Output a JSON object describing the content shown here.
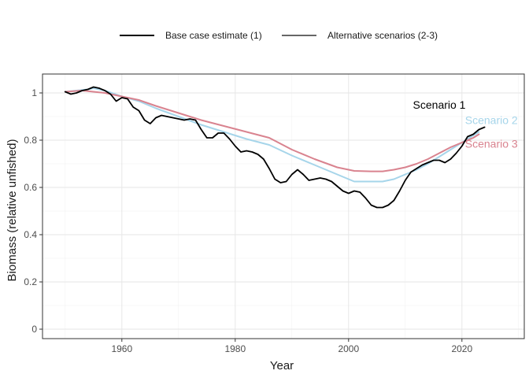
{
  "chart_data": {
    "type": "line",
    "title": "",
    "xlabel": "Year",
    "ylabel": "Biomass (relative unfished)",
    "xlim": [
      1946,
      2031
    ],
    "ylim": [
      -0.04,
      1.08
    ],
    "x_ticks": [
      1960,
      1980,
      2000,
      2020
    ],
    "x_tick_labels": [
      "1960",
      "1980",
      "2000",
      "2020"
    ],
    "y_ticks": [
      0,
      0.2,
      0.4,
      0.6,
      0.8,
      1
    ],
    "y_tick_labels": [
      "0",
      "0.2",
      "0.4",
      "0.6",
      "0.8",
      "1"
    ],
    "grid": true,
    "legend_position": "top",
    "legend": [
      {
        "label": "Base case estimate (1)",
        "color": "#000000"
      },
      {
        "label": "Alternative scenarios (2-3)",
        "color": "#666666"
      }
    ],
    "series": [
      {
        "name": "Scenario 2",
        "color": "#a6d5ea",
        "label_point": [
          2025.2,
          0.885
        ],
        "points": [
          [
            1950,
            1.005
          ],
          [
            1952,
            1.01
          ],
          [
            1954,
            1.015
          ],
          [
            1955,
            1.02
          ],
          [
            1957,
            1.01
          ],
          [
            1960,
            0.985
          ],
          [
            1963,
            0.965
          ],
          [
            1966,
            0.935
          ],
          [
            1970,
            0.9
          ],
          [
            1974,
            0.865
          ],
          [
            1978,
            0.835
          ],
          [
            1982,
            0.805
          ],
          [
            1986,
            0.78
          ],
          [
            1990,
            0.735
          ],
          [
            1994,
            0.695
          ],
          [
            1998,
            0.655
          ],
          [
            2001,
            0.625
          ],
          [
            2004,
            0.625
          ],
          [
            2006,
            0.625
          ],
          [
            2008,
            0.635
          ],
          [
            2010,
            0.655
          ],
          [
            2012,
            0.675
          ],
          [
            2014,
            0.7
          ],
          [
            2016,
            0.73
          ],
          [
            2018,
            0.76
          ],
          [
            2020,
            0.79
          ],
          [
            2022,
            0.82
          ],
          [
            2023,
            0.835
          ]
        ]
      },
      {
        "name": "Scenario 3",
        "color": "#d9838f",
        "label_point": [
          2025.2,
          0.785
        ],
        "points": [
          [
            1950,
            1.005
          ],
          [
            1953,
            1.01
          ],
          [
            1955,
            1.005
          ],
          [
            1957,
            1.0
          ],
          [
            1960,
            0.985
          ],
          [
            1963,
            0.97
          ],
          [
            1966,
            0.945
          ],
          [
            1970,
            0.915
          ],
          [
            1974,
            0.885
          ],
          [
            1978,
            0.86
          ],
          [
            1982,
            0.835
          ],
          [
            1986,
            0.81
          ],
          [
            1990,
            0.76
          ],
          [
            1994,
            0.72
          ],
          [
            1998,
            0.685
          ],
          [
            2001,
            0.67
          ],
          [
            2004,
            0.668
          ],
          [
            2006,
            0.668
          ],
          [
            2008,
            0.675
          ],
          [
            2010,
            0.685
          ],
          [
            2012,
            0.7
          ],
          [
            2014,
            0.72
          ],
          [
            2016,
            0.745
          ],
          [
            2018,
            0.77
          ],
          [
            2020,
            0.79
          ],
          [
            2022,
            0.81
          ],
          [
            2023,
            0.825
          ]
        ]
      },
      {
        "name": "Scenario 1",
        "color": "#000000",
        "label_point": [
          2016,
          0.95
        ],
        "points": [
          [
            1950,
            1.005
          ],
          [
            1951,
            0.995
          ],
          [
            1952,
            1.0
          ],
          [
            1953,
            1.01
          ],
          [
            1954,
            1.015
          ],
          [
            1955,
            1.025
          ],
          [
            1956,
            1.02
          ],
          [
            1957,
            1.01
          ],
          [
            1958,
            0.995
          ],
          [
            1959,
            0.965
          ],
          [
            1960,
            0.98
          ],
          [
            1961,
            0.975
          ],
          [
            1962,
            0.94
          ],
          [
            1963,
            0.925
          ],
          [
            1964,
            0.885
          ],
          [
            1965,
            0.87
          ],
          [
            1966,
            0.895
          ],
          [
            1967,
            0.905
          ],
          [
            1968,
            0.9
          ],
          [
            1969,
            0.895
          ],
          [
            1970,
            0.89
          ],
          [
            1971,
            0.885
          ],
          [
            1972,
            0.89
          ],
          [
            1973,
            0.885
          ],
          [
            1974,
            0.845
          ],
          [
            1975,
            0.81
          ],
          [
            1976,
            0.81
          ],
          [
            1977,
            0.83
          ],
          [
            1978,
            0.83
          ],
          [
            1979,
            0.805
          ],
          [
            1980,
            0.775
          ],
          [
            1981,
            0.75
          ],
          [
            1982,
            0.755
          ],
          [
            1983,
            0.75
          ],
          [
            1984,
            0.74
          ],
          [
            1985,
            0.72
          ],
          [
            1986,
            0.68
          ],
          [
            1987,
            0.635
          ],
          [
            1988,
            0.62
          ],
          [
            1989,
            0.625
          ],
          [
            1990,
            0.655
          ],
          [
            1991,
            0.675
          ],
          [
            1992,
            0.655
          ],
          [
            1993,
            0.63
          ],
          [
            1994,
            0.635
          ],
          [
            1995,
            0.64
          ],
          [
            1996,
            0.635
          ],
          [
            1997,
            0.625
          ],
          [
            1998,
            0.605
          ],
          [
            1999,
            0.585
          ],
          [
            2000,
            0.575
          ],
          [
            2001,
            0.585
          ],
          [
            2002,
            0.58
          ],
          [
            2003,
            0.555
          ],
          [
            2004,
            0.525
          ],
          [
            2005,
            0.515
          ],
          [
            2006,
            0.515
          ],
          [
            2007,
            0.525
          ],
          [
            2008,
            0.545
          ],
          [
            2009,
            0.585
          ],
          [
            2010,
            0.63
          ],
          [
            2011,
            0.665
          ],
          [
            2012,
            0.68
          ],
          [
            2013,
            0.695
          ],
          [
            2014,
            0.705
          ],
          [
            2015,
            0.715
          ],
          [
            2016,
            0.715
          ],
          [
            2017,
            0.705
          ],
          [
            2018,
            0.72
          ],
          [
            2019,
            0.745
          ],
          [
            2020,
            0.775
          ],
          [
            2021,
            0.815
          ],
          [
            2022,
            0.825
          ],
          [
            2023,
            0.845
          ],
          [
            2024,
            0.855
          ]
        ]
      }
    ]
  }
}
